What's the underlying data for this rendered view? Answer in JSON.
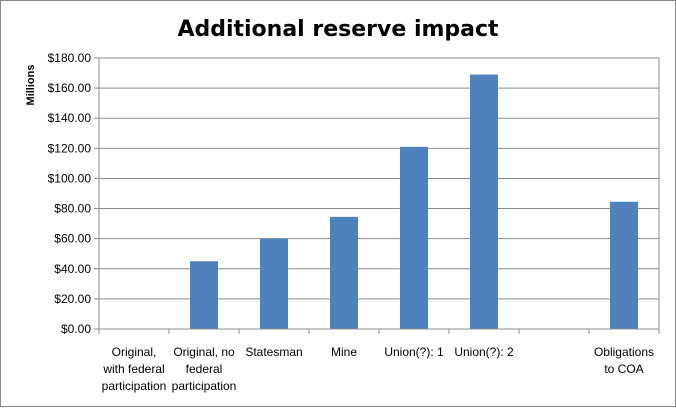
{
  "chart_data": {
    "type": "bar",
    "title": "Additional reserve impact",
    "ylabel": "Millions",
    "xlabel": "",
    "ylim": [
      0,
      180
    ],
    "y_ticks": [
      "$0.00",
      "$20.00",
      "$40.00",
      "$60.00",
      "$80.00",
      "$100.00",
      "$120.00",
      "$140.00",
      "$160.00",
      "$180.00"
    ],
    "categories": [
      [
        "Original,",
        "with federal",
        "participation"
      ],
      [
        "Original, no",
        "federal",
        "participation"
      ],
      [
        "Statesman"
      ],
      [
        "Mine"
      ],
      [
        "Union(?): 1"
      ],
      [
        "Union(?): 2"
      ],
      [
        ""
      ],
      [
        "Obligations",
        "to COA"
      ]
    ],
    "values": [
      0,
      45,
      60,
      74.5,
      121,
      169,
      0,
      84.5
    ],
    "bar_color": "#4f81bd",
    "grid": true,
    "legend": "none"
  }
}
